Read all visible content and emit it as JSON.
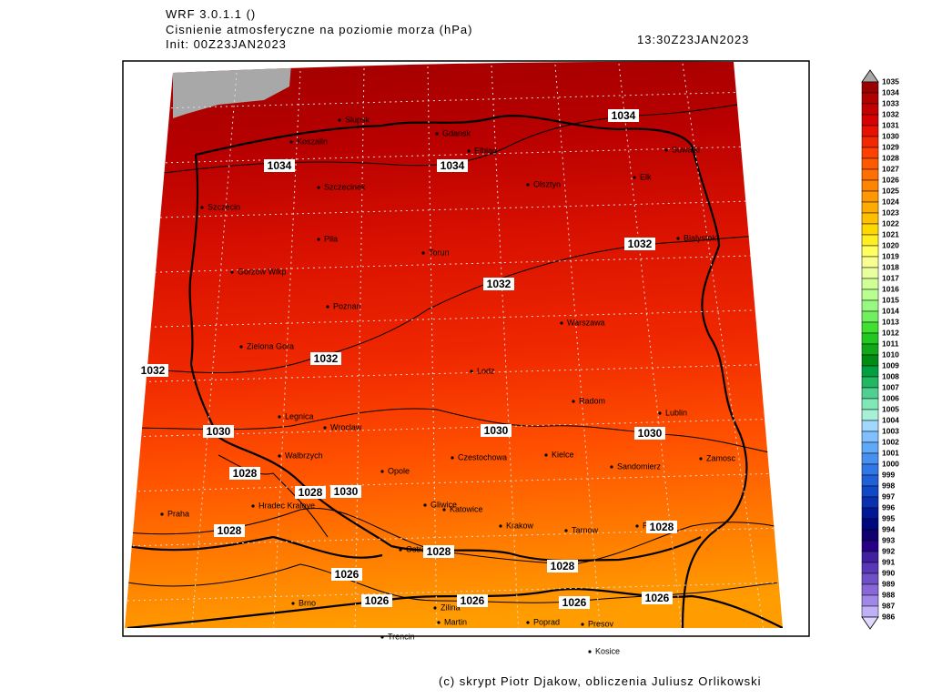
{
  "header": {
    "model": "WRF 3.0.1.1 ()",
    "title": "Cisnienie atmosferyczne na poziomie morza (hPa)",
    "init": "Init: 00Z23JAN2023",
    "valid": "13:30Z23JAN2023"
  },
  "map": {
    "cities": [
      "Slupsk",
      "Koszalin",
      "Gdansk",
      "Elblag",
      "Olsztyn",
      "Suwalki",
      "Elk",
      "Szczecinek",
      "Szczecin",
      "Pila",
      "Torun",
      "Bialystok",
      "Gorzow Wlkp",
      "Poznan",
      "Warszawa",
      "Zielona Gora",
      "Lodz",
      "Radom",
      "Lublin",
      "Legnica",
      "Wroclaw",
      "Walbrzych",
      "Opole",
      "Czestochowa",
      "Kielce",
      "Sandomierz",
      "Zamosc",
      "Praha",
      "Hradec Kralove",
      "Gliwice",
      "Katowice",
      "Krakow",
      "Tarnow",
      "Rzeszow",
      "Ostrava",
      "Brno",
      "Zilina",
      "Martin",
      "Poprad",
      "Presov",
      "Trencin",
      "Kosice"
    ],
    "isobar_labels": [
      1034,
      1034,
      1034,
      1032,
      1032,
      1032,
      1032,
      1030,
      1030,
      1030,
      1030,
      1028,
      1028,
      1028,
      1028,
      1028,
      1028,
      1026,
      1026,
      1026,
      1026,
      1026
    ]
  },
  "colorbar": {
    "levels": [
      1035,
      1034,
      1033,
      1032,
      1031,
      1030,
      1029,
      1028,
      1027,
      1026,
      1025,
      1024,
      1023,
      1022,
      1021,
      1020,
      1019,
      1018,
      1017,
      1016,
      1015,
      1014,
      1013,
      1012,
      1011,
      1010,
      1009,
      1008,
      1007,
      1006,
      1005,
      1004,
      1003,
      1002,
      1001,
      1000,
      999,
      998,
      997,
      996,
      995,
      994,
      993,
      992,
      991,
      990,
      989,
      988,
      987,
      986
    ],
    "colors": [
      "#9b0000",
      "#b00000",
      "#c40000",
      "#d80000",
      "#e81000",
      "#f42800",
      "#ff4000",
      "#ff5a00",
      "#ff7000",
      "#ff8400",
      "#ff9800",
      "#ffac00",
      "#ffc000",
      "#ffd800",
      "#ffef20",
      "#ffff60",
      "#f8ff90",
      "#e8ffa0",
      "#d0ff98",
      "#b8ff90",
      "#98f880",
      "#70f060",
      "#40e030",
      "#20c820",
      "#10a818",
      "#008c10",
      "#00a040",
      "#20b860",
      "#50d090",
      "#80e8b8",
      "#a8f0d8",
      "#a0d8ff",
      "#80c0ff",
      "#60a8f8",
      "#4890f0",
      "#3078e8",
      "#2060d8",
      "#1048c8",
      "#0830b0",
      "#001898",
      "#000880",
      "#100070",
      "#280088",
      "#4020a0",
      "#5838b8",
      "#7050c8",
      "#8868d8",
      "#a088e8",
      "#c0b0f8",
      "#e0d8ff"
    ]
  },
  "footer": "(c) skrypt Piotr Djakow, obliczenia Juliusz Orlikowski"
}
